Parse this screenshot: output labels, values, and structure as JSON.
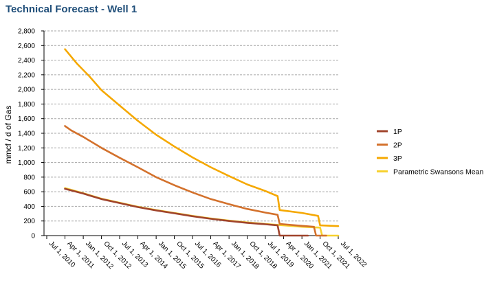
{
  "chart_data": {
    "type": "line",
    "title": "Technical Forecast - Well 1",
    "ylabel": "mmcf / d of Gas",
    "xlabel": "",
    "ylim": [
      0,
      2800
    ],
    "y_ticks": [
      "0",
      "200",
      "400",
      "600",
      "800",
      "1,000",
      "1,200",
      "1,400",
      "1,600",
      "1,800",
      "2,000",
      "2,200",
      "2,400",
      "2,600",
      "2,800"
    ],
    "x_ticks": [
      "Jul 1, 2010",
      "Apr 1, 2011",
      "Jan 1, 2012",
      "Oct 1, 2012",
      "Jul 1, 2013",
      "Apr 1, 2014",
      "Jan 1, 2015",
      "Oct 1, 2015",
      "Jul 1, 2016",
      "Apr 1, 2017",
      "Jan 1, 2018",
      "Oct 1, 2018",
      "Jul 1, 2019",
      "Apr 1, 2020",
      "Jan 1, 2021",
      "Oct 1, 2021",
      "Jul 1, 2022"
    ],
    "x_tick_dates": [
      "2010-07-01",
      "2011-04-01",
      "2012-01-01",
      "2012-10-01",
      "2013-07-01",
      "2014-04-01",
      "2015-01-01",
      "2015-10-01",
      "2016-07-01",
      "2017-04-01",
      "2018-01-01",
      "2018-10-01",
      "2019-07-01",
      "2020-04-01",
      "2021-01-01",
      "2021-10-01",
      "2022-07-01"
    ],
    "grid": true,
    "legend_position": "right",
    "series": [
      {
        "name": "1P",
        "color": "#a0442c",
        "points": [
          [
            "2011-04-01",
            640
          ],
          [
            "2012-01-01",
            575
          ],
          [
            "2012-10-01",
            500
          ],
          [
            "2013-07-01",
            445
          ],
          [
            "2014-04-01",
            390
          ],
          [
            "2015-01-01",
            345
          ],
          [
            "2015-10-01",
            305
          ],
          [
            "2016-07-01",
            265
          ],
          [
            "2017-04-01",
            230
          ],
          [
            "2018-01-01",
            200
          ],
          [
            "2018-10-01",
            175
          ],
          [
            "2019-07-01",
            155
          ],
          [
            "2020-01-01",
            140
          ],
          [
            "2020-02-01",
            0
          ],
          [
            "2021-04-01",
            0
          ]
        ]
      },
      {
        "name": "2P",
        "color": "#d3712c",
        "points": [
          [
            "2011-04-01",
            1500
          ],
          [
            "2011-07-01",
            1440
          ],
          [
            "2012-01-01",
            1350
          ],
          [
            "2012-10-01",
            1200
          ],
          [
            "2013-07-01",
            1065
          ],
          [
            "2014-04-01",
            935
          ],
          [
            "2015-01-01",
            800
          ],
          [
            "2015-10-01",
            690
          ],
          [
            "2016-07-01",
            590
          ],
          [
            "2017-04-01",
            500
          ],
          [
            "2018-01-01",
            430
          ],
          [
            "2018-10-01",
            365
          ],
          [
            "2019-07-01",
            315
          ],
          [
            "2020-01-01",
            285
          ],
          [
            "2020-02-01",
            160
          ],
          [
            "2020-10-01",
            140
          ],
          [
            "2021-07-01",
            120
          ],
          [
            "2021-08-01",
            0
          ],
          [
            "2022-01-01",
            0
          ]
        ]
      },
      {
        "name": "3P",
        "color": "#f5a800",
        "points": [
          [
            "2011-04-01",
            2550
          ],
          [
            "2011-10-01",
            2350
          ],
          [
            "2012-04-01",
            2180
          ],
          [
            "2012-10-01",
            1990
          ],
          [
            "2013-07-01",
            1780
          ],
          [
            "2014-04-01",
            1570
          ],
          [
            "2015-01-01",
            1380
          ],
          [
            "2015-10-01",
            1220
          ],
          [
            "2016-07-01",
            1070
          ],
          [
            "2017-04-01",
            935
          ],
          [
            "2018-01-01",
            815
          ],
          [
            "2018-10-01",
            700
          ],
          [
            "2019-07-01",
            610
          ],
          [
            "2020-01-01",
            540
          ],
          [
            "2020-02-01",
            350
          ],
          [
            "2021-01-01",
            310
          ],
          [
            "2021-09-01",
            270
          ],
          [
            "2021-10-01",
            140
          ],
          [
            "2022-07-01",
            130
          ]
        ]
      },
      {
        "name": "Parametric Swansons Mean",
        "color": "#f7d12e",
        "points": [
          [
            "2011-04-01",
            650
          ],
          [
            "2012-01-01",
            580
          ],
          [
            "2012-10-01",
            505
          ],
          [
            "2013-07-01",
            450
          ],
          [
            "2014-04-01",
            395
          ],
          [
            "2015-01-01",
            350
          ],
          [
            "2015-10-01",
            310
          ],
          [
            "2016-07-01",
            270
          ],
          [
            "2017-04-01",
            235
          ],
          [
            "2018-01-01",
            205
          ],
          [
            "2018-10-01",
            180
          ],
          [
            "2019-07-01",
            160
          ],
          [
            "2020-04-01",
            140
          ],
          [
            "2021-01-01",
            120
          ],
          [
            "2021-10-01",
            110
          ],
          [
            "2021-11-01",
            0
          ],
          [
            "2022-07-01",
            0
          ]
        ]
      }
    ]
  }
}
